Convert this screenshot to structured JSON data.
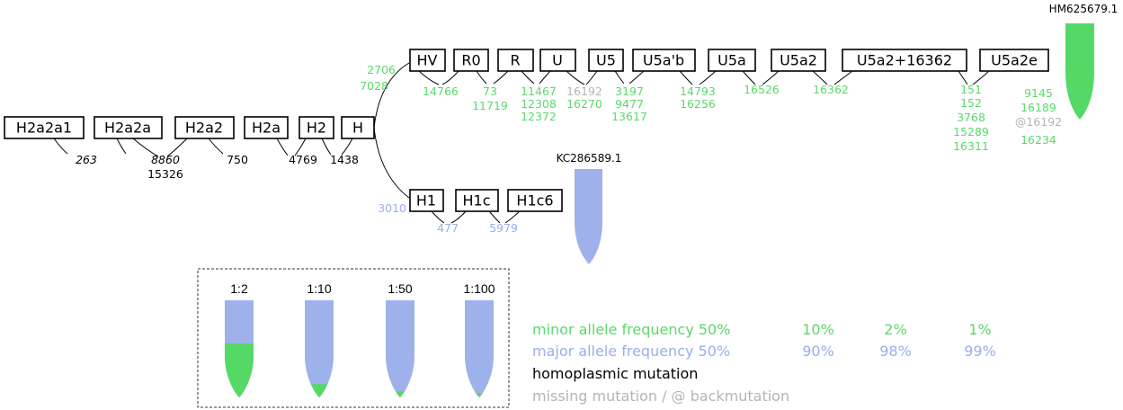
{
  "colors": {
    "green": "#5bd86b",
    "blue": "#9aaeea",
    "black": "#000000",
    "gray": "#b4b4b4",
    "tube_blue": "#9fb1ea",
    "tube_green": "#56d866"
  },
  "samples": {
    "top": "HM625679.1",
    "bottom": "KC286589.1"
  },
  "h_lineage": {
    "nodes": [
      "H2a2a1",
      "H2a2a",
      "H2a2",
      "H2a",
      "H2",
      "H"
    ],
    "mutations": [
      "263",
      "8860",
      "15326",
      "750",
      "4769",
      "1438"
    ]
  },
  "u_branch": {
    "branch_mutations": [
      "2706",
      "7028"
    ],
    "nodes": [
      "HV",
      "R0",
      "R",
      "U",
      "U5",
      "U5a'b",
      "U5a",
      "U5a2",
      "U5a2+16362",
      "U5a2e"
    ],
    "mutations": {
      "hv": [
        "14766"
      ],
      "r0": [
        "73",
        "11719"
      ],
      "r": [
        "11467",
        "12308",
        "12372"
      ],
      "u_missing": "16192",
      "u": [
        "16270"
      ],
      "u5": [
        "3197",
        "9477",
        "13617"
      ],
      "u5ab": [
        "14793",
        "16256"
      ],
      "u5a": [
        "16526"
      ],
      "u5a2": [
        "16362"
      ],
      "u5a2e": [
        "151",
        "152",
        "3768",
        "15289",
        "16311"
      ],
      "terminal_top": [
        "9145",
        "16189"
      ],
      "backmutation": "@16192",
      "terminal_bottom": [
        "16234"
      ]
    }
  },
  "h1_branch": {
    "branch_mutations": [
      "3010"
    ],
    "nodes": [
      "H1",
      "H1c",
      "H1c6"
    ],
    "mutations": [
      "477",
      "5979"
    ]
  },
  "legend": {
    "ratios": [
      "1:2",
      "1:10",
      "1:50",
      "1:100"
    ],
    "minor_fractions": [
      0.5,
      0.1,
      0.02,
      0.01
    ],
    "minor_label": "minor allele frequency 50%",
    "minor_values": [
      "10%",
      "2%",
      "1%"
    ],
    "major_label": "major allele frequency 50%",
    "major_values": [
      "90%",
      "98%",
      "99%"
    ],
    "homoplasmic": "homoplasmic mutation",
    "missing": "missing mutation / @ backmutation"
  }
}
